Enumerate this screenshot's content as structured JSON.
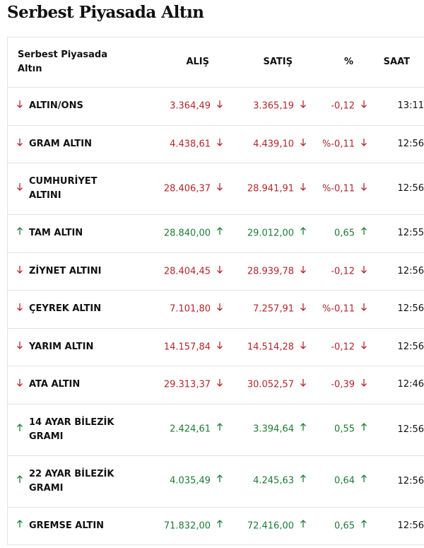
{
  "header": {
    "title": "Serbest Piyasada Altın"
  },
  "table": {
    "columns": [
      "Serbest Piyasada Altın",
      "ALIŞ",
      "SATIŞ",
      "%",
      "SAAT"
    ],
    "rows": [
      {
        "name": "ALTIN/ONS",
        "buy": "3.364,49",
        "sell": "3.365,19",
        "change": "-0,12",
        "time": "13:11",
        "trend": "down"
      },
      {
        "name": "GRAM ALTIN",
        "buy": "4.438,61",
        "sell": "4.439,10",
        "change": "%-0,11",
        "time": "12:56",
        "trend": "down"
      },
      {
        "name": "CUMHURİYET ALTINI",
        "buy": "28.406,37",
        "sell": "28.941,91",
        "change": "%-0,11",
        "time": "12:56",
        "trend": "down"
      },
      {
        "name": "TAM ALTIN",
        "buy": "28.840,00",
        "sell": "29.012,00",
        "change": "0,65",
        "time": "12:55",
        "trend": "up"
      },
      {
        "name": "ZİYNET ALTINI",
        "buy": "28.404,45",
        "sell": "28.939,78",
        "change": "-0,12",
        "time": "12:56",
        "trend": "down"
      },
      {
        "name": "ÇEYREK ALTIN",
        "buy": "7.101,80",
        "sell": "7.257,91",
        "change": "%-0,11",
        "time": "12:56",
        "trend": "down"
      },
      {
        "name": "YARIM ALTIN",
        "buy": "14.157,84",
        "sell": "14.514,28",
        "change": "-0,12",
        "time": "12:56",
        "trend": "down"
      },
      {
        "name": "ATA ALTIN",
        "buy": "29.313,37",
        "sell": "30.052,57",
        "change": "-0,39",
        "time": "12:46",
        "trend": "down"
      },
      {
        "name": "14 AYAR BİLEZİK GRAMI",
        "buy": "2.424,61",
        "sell": "3.394,64",
        "change": "0,55",
        "time": "12:56",
        "trend": "up"
      },
      {
        "name": "22 AYAR BİLEZİK GRAMI",
        "buy": "4.035,49",
        "sell": "4.245,63",
        "change": "0,64",
        "time": "12:56",
        "trend": "up"
      },
      {
        "name": "GREMSE ALTIN",
        "buy": "71.832,00",
        "sell": "72.416,00",
        "change": "0,65",
        "time": "12:56",
        "trend": "up"
      }
    ]
  }
}
